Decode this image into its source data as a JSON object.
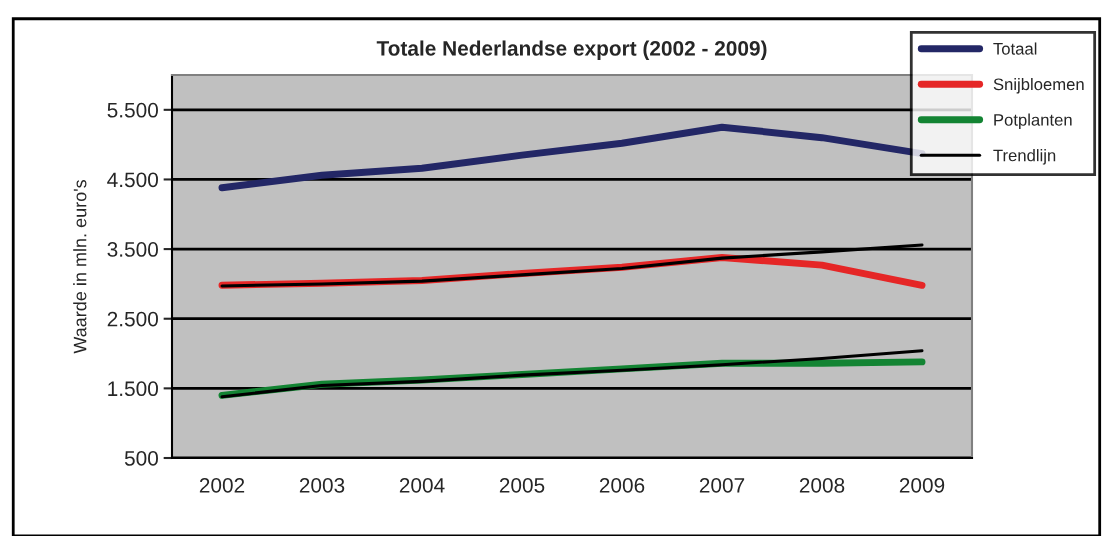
{
  "chart_data": {
    "type": "line",
    "title": "Totale Nederlandse export (2002 - 2009)",
    "ylabel": "Waarde in mln. euro's",
    "categories": [
      "2002",
      "2003",
      "2004",
      "2005",
      "2006",
      "2007",
      "2008",
      "2009"
    ],
    "series": [
      {
        "name": "Totaal",
        "color": "#232766",
        "values": [
          4380,
          4560,
          4660,
          4850,
          5020,
          5250,
          5100,
          4870
        ]
      },
      {
        "name": "Snijbloemen",
        "color": "#e52626",
        "values": [
          2980,
          3010,
          3050,
          3150,
          3240,
          3380,
          3270,
          2980
        ]
      },
      {
        "name": "Potplanten",
        "color": "#138433",
        "values": [
          1400,
          1560,
          1620,
          1700,
          1780,
          1860,
          1860,
          1880
        ]
      },
      {
        "name": "Trendlijn",
        "color": "#000000",
        "values": [
          2970,
          3000,
          3040,
          3130,
          3220,
          3370,
          3460,
          3560
        ]
      },
      {
        "color": "#000000",
        "values": [
          1380,
          1540,
          1600,
          1690,
          1760,
          1840,
          1930,
          2040
        ]
      }
    ],
    "ylim": [
      500,
      6000
    ],
    "yticks": [
      {
        "value": 500,
        "label": "500"
      },
      {
        "value": 1500,
        "label": "1.500"
      },
      {
        "value": 2500,
        "label": "2.500"
      },
      {
        "value": 3500,
        "label": "3.500"
      },
      {
        "value": 4500,
        "label": "4.500"
      },
      {
        "value": 5500,
        "label": "5.500"
      }
    ],
    "grid": "y",
    "legend": "top right",
    "marker": "none",
    "line_style": "solid"
  }
}
